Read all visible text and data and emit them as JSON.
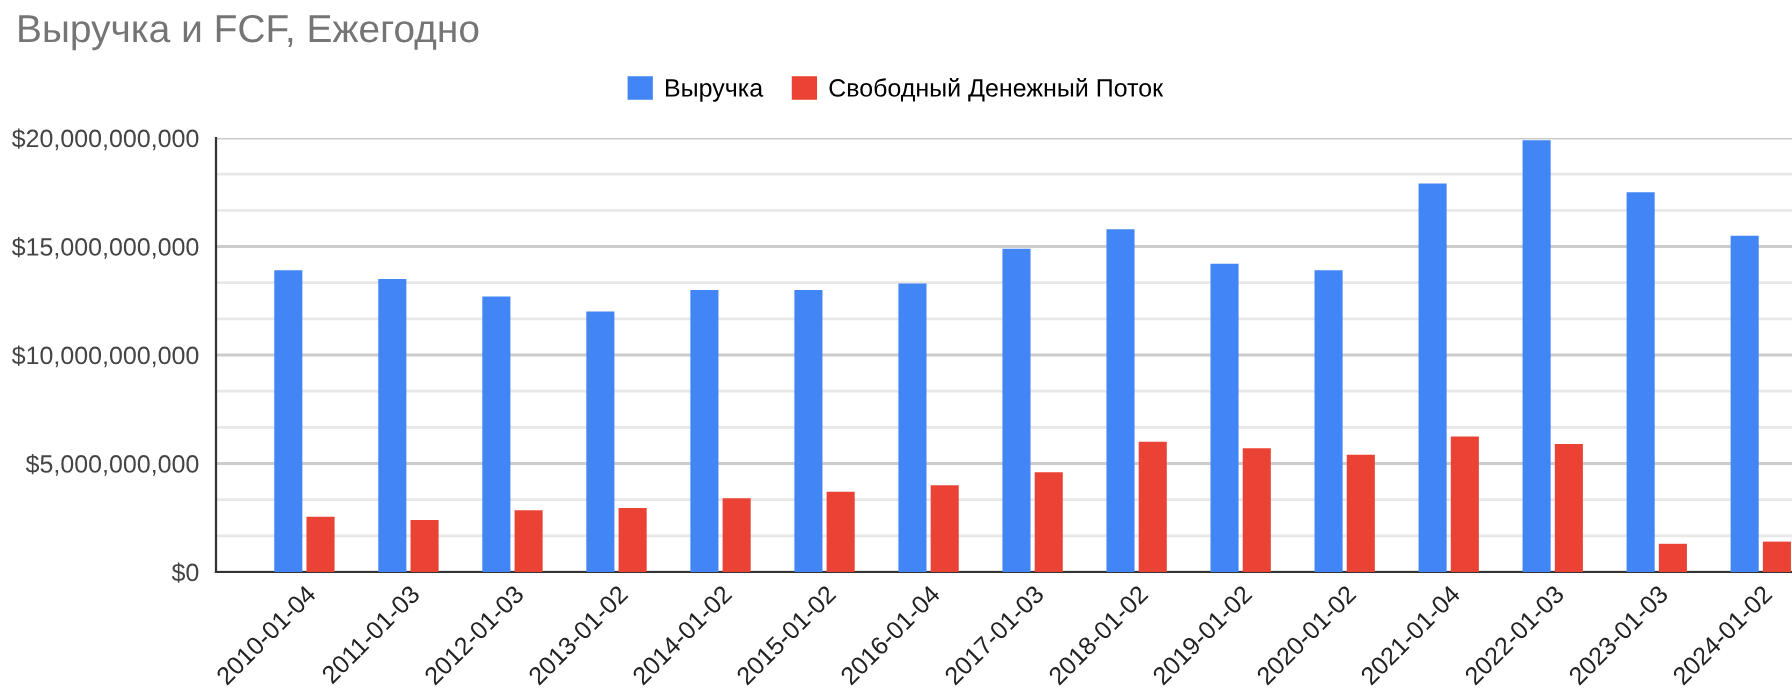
{
  "chart_data": {
    "type": "bar",
    "title": "Выручка и FCF, Ежегодно",
    "categories": [
      "2010-01-04",
      "2011-01-03",
      "2012-01-03",
      "2013-01-02",
      "2014-01-02",
      "2015-01-02",
      "2016-01-04",
      "2017-01-03",
      "2018-01-02",
      "2019-01-02",
      "2020-01-02",
      "2021-01-04",
      "2022-01-03",
      "2023-01-03",
      "2024-01-02"
    ],
    "series": [
      {
        "name": "Выручка",
        "color": "#4285f4",
        "values": [
          13900000000,
          13500000000,
          12700000000,
          12000000000,
          13000000000,
          13000000000,
          13300000000,
          14900000000,
          15800000000,
          14200000000,
          13900000000,
          17900000000,
          19900000000,
          17500000000,
          15500000000
        ]
      },
      {
        "name": "Свободный Денежный Поток",
        "color": "#ea4335",
        "values": [
          2550000000,
          2400000000,
          2850000000,
          2950000000,
          3400000000,
          3700000000,
          4000000000,
          4600000000,
          6000000000,
          5700000000,
          5400000000,
          6250000000,
          5900000000,
          1300000000,
          1400000000
        ]
      }
    ],
    "ylim": [
      0,
      20000000000
    ],
    "yticks": [
      {
        "value": 0,
        "label": "$0"
      },
      {
        "value": 1666666667,
        "label": null
      },
      {
        "value": 3333333333,
        "label": null
      },
      {
        "value": 5000000000,
        "label": "$5,000,000,000"
      },
      {
        "value": 6666666667,
        "label": null
      },
      {
        "value": 8333333333,
        "label": null
      },
      {
        "value": 10000000000,
        "label": "$10,000,000,000"
      },
      {
        "value": 11666666667,
        "label": null
      },
      {
        "value": 13333333333,
        "label": null
      },
      {
        "value": 15000000000,
        "label": "$15,000,000,000"
      },
      {
        "value": 16666666667,
        "label": null
      },
      {
        "value": 18333333333,
        "label": null
      },
      {
        "value": 20000000000,
        "label": "$20,000,000,000"
      }
    ],
    "grid": "y",
    "legend": "top"
  }
}
